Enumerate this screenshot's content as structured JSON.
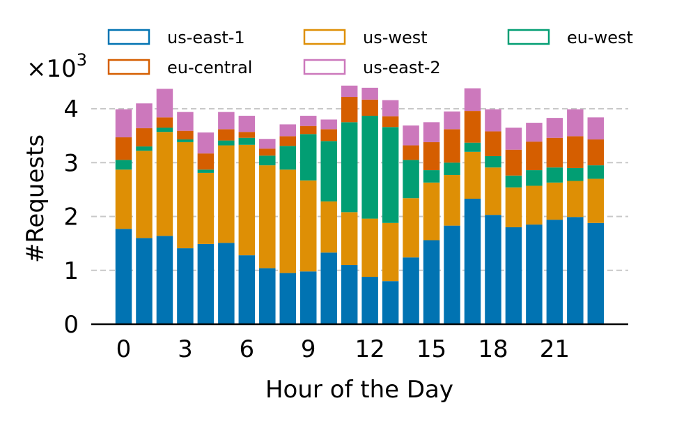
{
  "chart_data": {
    "type": "bar",
    "stacked": true,
    "title": "",
    "xlabel": "Hour of the Day",
    "ylabel": "#Requests",
    "y_multiplier_label": "×10",
    "y_multiplier_exp": "3",
    "ylim": [
      0,
      4.4
    ],
    "yticks": [
      0,
      1,
      2,
      3,
      4
    ],
    "ytick_labels": [
      "0",
      "1",
      "2",
      "3",
      "4"
    ],
    "xticks": [
      0,
      3,
      6,
      9,
      12,
      15,
      18,
      21
    ],
    "xtick_labels": [
      "0",
      "3",
      "6",
      "9",
      "12",
      "15",
      "18",
      "21"
    ],
    "grid": "y-dashed",
    "legend_position": "top",
    "categories": [
      0,
      1,
      2,
      3,
      4,
      5,
      6,
      7,
      8,
      9,
      10,
      11,
      12,
      13,
      14,
      15,
      16,
      17,
      18,
      19,
      20,
      21,
      22,
      23
    ],
    "series": [
      {
        "name": "us-east-1",
        "color": "#0173b2",
        "values": [
          1.77,
          1.6,
          1.64,
          1.41,
          1.49,
          1.51,
          1.28,
          1.04,
          0.95,
          0.98,
          1.33,
          1.1,
          0.88,
          0.8,
          1.24,
          1.56,
          1.83,
          2.33,
          2.03,
          1.8,
          1.85,
          1.94,
          1.99,
          1.88
        ]
      },
      {
        "name": "us-west",
        "color": "#de8f05",
        "values": [
          1.1,
          1.62,
          1.93,
          1.97,
          1.32,
          1.81,
          2.05,
          1.91,
          1.92,
          1.69,
          0.95,
          0.98,
          1.08,
          1.08,
          1.1,
          1.07,
          0.94,
          0.87,
          0.88,
          0.74,
          0.72,
          0.69,
          0.67,
          0.82
        ]
      },
      {
        "name": "eu-west",
        "color": "#029e73",
        "values": [
          0.18,
          0.08,
          0.08,
          0.05,
          0.06,
          0.09,
          0.13,
          0.18,
          0.44,
          0.86,
          1.12,
          1.67,
          1.91,
          1.78,
          0.71,
          0.23,
          0.23,
          0.17,
          0.21,
          0.22,
          0.29,
          0.28,
          0.24,
          0.25
        ]
      },
      {
        "name": "eu-central",
        "color": "#d55e00",
        "values": [
          0.42,
          0.34,
          0.19,
          0.16,
          0.3,
          0.21,
          0.11,
          0.13,
          0.18,
          0.15,
          0.22,
          0.47,
          0.3,
          0.2,
          0.27,
          0.52,
          0.62,
          0.59,
          0.46,
          0.48,
          0.53,
          0.55,
          0.59,
          0.48
        ]
      },
      {
        "name": "us-east-2",
        "color": "#cc78bc",
        "values": [
          0.52,
          0.46,
          0.53,
          0.35,
          0.39,
          0.32,
          0.3,
          0.18,
          0.22,
          0.19,
          0.18,
          0.21,
          0.22,
          0.3,
          0.37,
          0.37,
          0.33,
          0.42,
          0.41,
          0.41,
          0.35,
          0.37,
          0.5,
          0.41
        ]
      }
    ]
  }
}
